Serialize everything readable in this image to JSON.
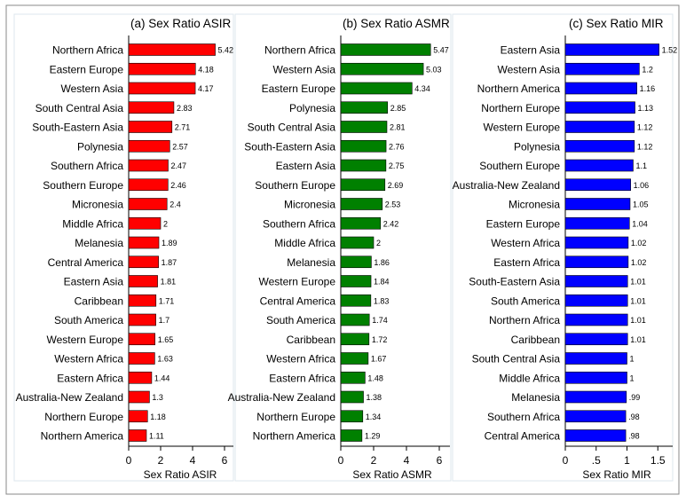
{
  "chart_data": [
    {
      "type": "bar",
      "orientation": "horizontal",
      "title": "(a) Sex Ratio ASIR",
      "xlabel": "Sex Ratio ASIR",
      "xlim": [
        0,
        6.5
      ],
      "xticks": [
        "0",
        "2",
        "4",
        "6"
      ],
      "xtick_values": [
        0,
        2,
        4,
        6
      ],
      "color": "#ff0000",
      "categories": [
        "Northern Africa",
        "Eastern Europe",
        "Western Asia",
        "South Central Asia",
        "South-Eastern Asia",
        "Polynesia",
        "Southern Africa",
        "Southern Europe",
        "Micronesia",
        "Middle Africa",
        "Melanesia",
        "Central America",
        "Eastern Asia",
        "Caribbean",
        "South America",
        "Western Europe",
        "Western Africa",
        "Eastern Africa",
        "Australia-New Zealand",
        "Northern Europe",
        "Northern America"
      ],
      "values": [
        5.42,
        4.18,
        4.17,
        2.83,
        2.71,
        2.57,
        2.47,
        2.46,
        2.4,
        2,
        1.89,
        1.87,
        1.81,
        1.71,
        1.7,
        1.65,
        1.63,
        1.44,
        1.3,
        1.18,
        1.11
      ],
      "labels": [
        "5.42",
        "4.18",
        "4.17",
        "2.83",
        "2.71",
        "2.57",
        "2.47",
        "2.46",
        "2.4",
        "2",
        "1.89",
        "1.87",
        "1.81",
        "1.71",
        "1.7",
        "1.65",
        "1.63",
        "1.44",
        "1.3",
        "1.18",
        "1.11"
      ]
    },
    {
      "type": "bar",
      "orientation": "horizontal",
      "title": "(b) Sex Ratio ASMR",
      "xlabel": "Sex Ratio ASMR",
      "xlim": [
        0,
        6.5
      ],
      "xticks": [
        "0",
        "2",
        "4",
        "6"
      ],
      "xtick_values": [
        0,
        2,
        4,
        6
      ],
      "color": "#008000",
      "categories": [
        "Northern Africa",
        "Western Asia",
        "Eastern Europe",
        "Polynesia",
        "South Central Asia",
        "South-Eastern Asia",
        "Eastern Asia",
        "Southern Europe",
        "Micronesia",
        "Southern Africa",
        "Middle Africa",
        "Melanesia",
        "Western Europe",
        "Central America",
        "South America",
        "Caribbean",
        "Western Africa",
        "Eastern Africa",
        "Australia-New Zealand",
        "Northern Europe",
        "Northern America"
      ],
      "values": [
        5.47,
        5.03,
        4.34,
        2.85,
        2.81,
        2.76,
        2.75,
        2.69,
        2.53,
        2.42,
        2,
        1.86,
        1.84,
        1.83,
        1.74,
        1.72,
        1.67,
        1.48,
        1.38,
        1.34,
        1.29
      ],
      "labels": [
        "5.47",
        "5.03",
        "4.34",
        "2.85",
        "2.81",
        "2.76",
        "2.75",
        "2.69",
        "2.53",
        "2.42",
        "2",
        "1.86",
        "1.84",
        "1.83",
        "1.74",
        "1.72",
        "1.67",
        "1.48",
        "1.38",
        "1.34",
        "1.29"
      ]
    },
    {
      "type": "bar",
      "orientation": "horizontal",
      "title": "(c) Sex Ratio MIR",
      "xlabel": "Sex Ratio MIR",
      "xlim": [
        0,
        1.7
      ],
      "xticks": [
        "0",
        ".5",
        "1",
        "1.5"
      ],
      "xtick_values": [
        0,
        0.5,
        1,
        1.5
      ],
      "color": "#0000ff",
      "categories": [
        "Eastern Asia",
        "Western Asia",
        "Northern America",
        "Northern Europe",
        "Western Europe",
        "Polynesia",
        "Southern Europe",
        "Australia-New Zealand",
        "Micronesia",
        "Eastern Europe",
        "Western Africa",
        "Eastern Africa",
        "South-Eastern Asia",
        "South America",
        "Northern Africa",
        "Caribbean",
        "South Central Asia",
        "Middle Africa",
        "Melanesia",
        "Southern Africa",
        "Central America"
      ],
      "values": [
        1.52,
        1.2,
        1.16,
        1.13,
        1.12,
        1.12,
        1.1,
        1.06,
        1.05,
        1.04,
        1.02,
        1.02,
        1.01,
        1.01,
        1.01,
        1.01,
        1,
        1,
        0.99,
        0.98,
        0.98
      ],
      "labels": [
        "1.52",
        "1.2",
        "1.16",
        "1.13",
        "1.12",
        "1.12",
        "1.1",
        "1.06",
        "1.05",
        "1.04",
        "1.02",
        "1.02",
        "1.01",
        "1.01",
        "1.01",
        "1.01",
        "1",
        "1",
        ".99",
        ".98",
        ".98"
      ]
    }
  ]
}
